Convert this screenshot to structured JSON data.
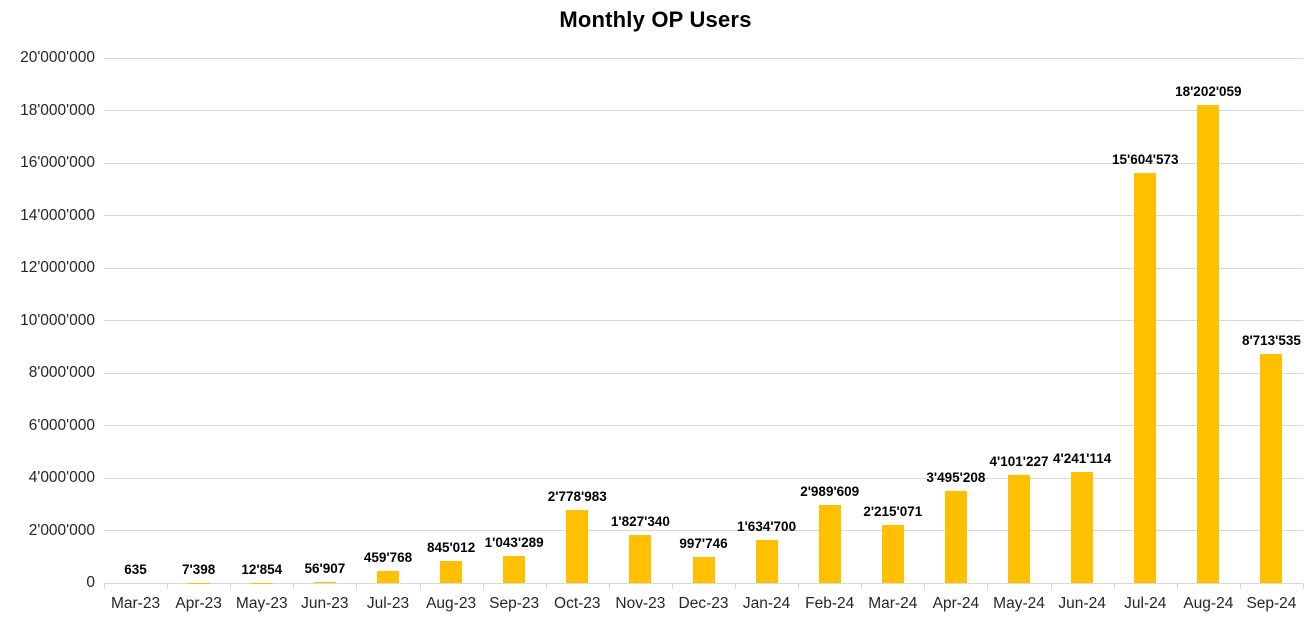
{
  "chart_data": {
    "type": "bar",
    "title": "Monthly OP Users",
    "xlabel": "",
    "ylabel": "",
    "categories": [
      "Mar-23",
      "Apr-23",
      "May-23",
      "Jun-23",
      "Jul-23",
      "Aug-23",
      "Sep-23",
      "Oct-23",
      "Nov-23",
      "Dec-23",
      "Jan-24",
      "Feb-24",
      "Mar-24",
      "Apr-24",
      "May-24",
      "Jun-24",
      "Jul-24",
      "Aug-24",
      "Sep-24"
    ],
    "values": [
      635,
      7398,
      12854,
      56907,
      459768,
      845012,
      1043289,
      2778983,
      1827340,
      997746,
      1634700,
      2989609,
      2215071,
      3495208,
      4101227,
      4241114,
      15604573,
      18202059,
      8713535
    ],
    "value_labels": [
      "635",
      "7'398",
      "12'854",
      "56'907",
      "459'768",
      "845'012",
      "1'043'289",
      "2'778'983",
      "1'827'340",
      "997'746",
      "1'634'700",
      "2'989'609",
      "2'215'071",
      "3'495'208",
      "4'101'227",
      "4'241'114",
      "15'604'573",
      "18'202'059",
      "8'713'535"
    ],
    "ylim": [
      0,
      20000000
    ],
    "y_axis": {
      "ticks": [
        {
          "value": 0,
          "label": "0"
        },
        {
          "value": 2000000,
          "label": "2'000'000"
        },
        {
          "value": 4000000,
          "label": "4'000'000"
        },
        {
          "value": 6000000,
          "label": "6'000'000"
        },
        {
          "value": 8000000,
          "label": "8'000'000"
        },
        {
          "value": 10000000,
          "label": "10'000'000"
        },
        {
          "value": 12000000,
          "label": "12'000'000"
        },
        {
          "value": 14000000,
          "label": "14'000'000"
        },
        {
          "value": 16000000,
          "label": "16'000'000"
        },
        {
          "value": 18000000,
          "label": "18'000'000"
        },
        {
          "value": 20000000,
          "label": "20'000'000"
        }
      ]
    },
    "grid": "horizontal",
    "legend": "none",
    "bar_color": "#FFC000",
    "gridline_color": "#D9D9D9",
    "axis_color": "#D9D9D9",
    "label_color": "#000000",
    "axis_text_color": "#262626"
  }
}
